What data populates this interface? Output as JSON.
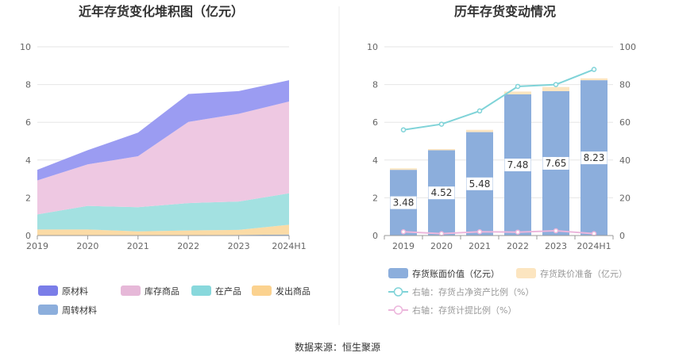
{
  "left_chart_title": "近年存货变化堆积图（亿元）",
  "right_chart_title": "历年存货变动情况",
  "source_text": "数据来源：恒生聚源",
  "chart_data": [
    {
      "type": "area",
      "title": "近年存货变化堆积图（亿元）",
      "x": [
        "2019",
        "2020",
        "2021",
        "2022",
        "2023",
        "2024H1"
      ],
      "ylim": [
        0,
        10
      ],
      "yticks": [
        "0",
        "2",
        "4",
        "6",
        "8",
        "10"
      ],
      "grid": true,
      "legend_position": "bottom",
      "stacked": true,
      "series": [
        {
          "name": "周转材料",
          "color": "#8caedc",
          "values": [
            0.02,
            0.02,
            0.02,
            0.02,
            0.03,
            0.05
          ]
        },
        {
          "name": "发出商品",
          "color": "#fbdba6",
          "values": [
            0.3,
            0.3,
            0.2,
            0.25,
            0.27,
            0.52
          ]
        },
        {
          "name": "在产品",
          "color": "#a3e1e1",
          "values": [
            0.8,
            1.25,
            1.28,
            1.45,
            1.5,
            1.67
          ]
        },
        {
          "name": "库存商品",
          "color": "#eec8e2",
          "values": [
            1.8,
            2.2,
            2.7,
            4.3,
            4.65,
            4.86
          ]
        },
        {
          "name": "原材料",
          "color": "#9b9cf2",
          "values": [
            0.56,
            0.75,
            1.25,
            1.48,
            1.2,
            1.13
          ]
        }
      ],
      "legend_order": [
        "原材料",
        "库存商品",
        "在产品",
        "发出商品",
        "周转材料"
      ],
      "legend_colors": {
        "原材料": "#7a7de8",
        "库存商品": "#e6b8d8",
        "在产品": "#88d8dc",
        "发出商品": "#fbd28f",
        "周转材料": "#8caedc"
      }
    },
    {
      "type": "bar",
      "title": "历年存货变动情况",
      "categories": [
        "2019",
        "2020",
        "2021",
        "2022",
        "2023",
        "2024H1"
      ],
      "ylim": [
        0,
        10
      ],
      "yticks": [
        "0",
        "2",
        "4",
        "6",
        "8",
        "10"
      ],
      "y2lim": [
        0,
        100
      ],
      "y2ticks": [
        "0",
        "20",
        "40",
        "60",
        "80",
        "100"
      ],
      "grid": true,
      "legend_position": "bottom",
      "series": [
        {
          "name": "存货账面价值（亿元）",
          "kind": "bar",
          "axis": "left",
          "color": "#8caedc",
          "values": [
            3.48,
            4.52,
            5.48,
            7.48,
            7.65,
            8.23
          ],
          "labels": [
            "3.48",
            "4.52",
            "5.48",
            "7.48",
            "7.65",
            "8.23"
          ]
        },
        {
          "name": "存货跌价准备（亿元）",
          "kind": "bar",
          "axis": "left",
          "color": "#fce5c0",
          "values": [
            0.08,
            0.06,
            0.12,
            0.15,
            0.22,
            0.1
          ]
        },
        {
          "name": "右轴：存货占净资产比例（%）",
          "kind": "line",
          "axis": "right",
          "color": "#7fd3d8",
          "values": [
            56,
            59,
            66,
            79,
            80,
            88
          ]
        },
        {
          "name": "右轴：存货计提比例（%）",
          "kind": "line",
          "axis": "right",
          "color": "#ecb6dc",
          "values": [
            2,
            1,
            2,
            1.8,
            2.5,
            1
          ]
        }
      ]
    }
  ]
}
